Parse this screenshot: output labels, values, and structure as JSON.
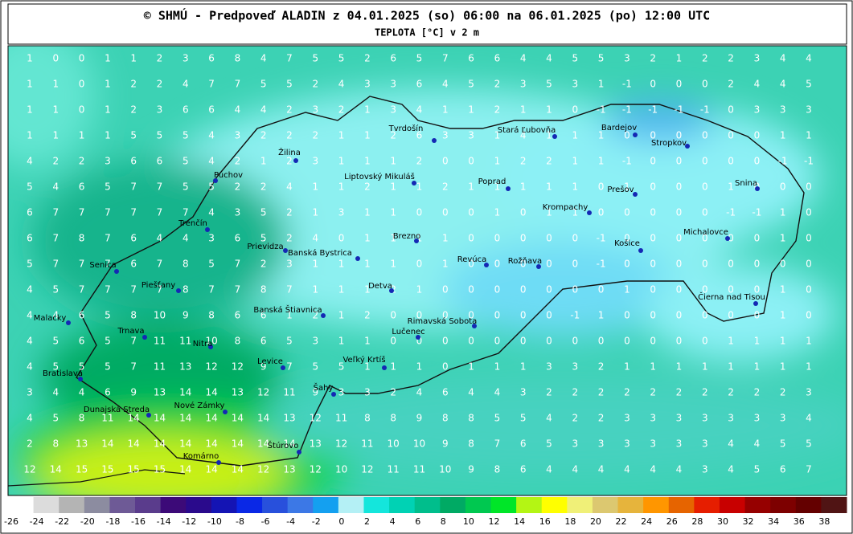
{
  "header": {
    "title": "© SHMÚ - Predpoveď ALADIN z 04.01.2025 (so) 06:00 na 06.01.2025 (po) 12:00 UTC",
    "subtitle": "TEPLOTA [°C] v 2 m"
  },
  "grid": {
    "rows": [
      [
        1,
        0,
        0,
        1,
        1,
        2,
        3,
        6,
        8,
        4,
        7,
        5,
        5,
        2,
        6,
        5,
        7,
        6,
        6,
        4,
        4,
        5,
        5,
        3,
        2,
        1,
        2,
        2,
        3,
        4,
        4
      ],
      [
        1,
        1,
        0,
        1,
        2,
        2,
        4,
        7,
        7,
        5,
        5,
        2,
        4,
        3,
        3,
        6,
        4,
        5,
        2,
        3,
        5,
        3,
        1,
        -1,
        0,
        0,
        0,
        2,
        4,
        4,
        5
      ],
      [
        1,
        1,
        0,
        1,
        2,
        3,
        6,
        6,
        4,
        4,
        2,
        3,
        2,
        1,
        3,
        4,
        1,
        1,
        2,
        1,
        1,
        0,
        -1,
        -1,
        -1,
        -1,
        -1,
        0,
        3,
        3,
        3
      ],
      [
        1,
        1,
        1,
        1,
        5,
        5,
        5,
        4,
        3,
        2,
        2,
        2,
        1,
        1,
        2,
        6,
        3,
        3,
        1,
        4,
        1,
        1,
        1,
        0,
        0,
        0,
        0,
        0,
        0,
        1,
        1
      ],
      [
        4,
        2,
        2,
        3,
        6,
        6,
        5,
        4,
        2,
        1,
        2,
        3,
        1,
        1,
        1,
        2,
        0,
        0,
        1,
        2,
        2,
        1,
        1,
        -1,
        0,
        0,
        0,
        0,
        0,
        -1,
        -1
      ],
      [
        5,
        4,
        6,
        5,
        7,
        7,
        5,
        5,
        2,
        2,
        4,
        1,
        1,
        2,
        1,
        1,
        2,
        1,
        1,
        1,
        1,
        1,
        0,
        1,
        0,
        0,
        0,
        1,
        0,
        0,
        0
      ],
      [
        6,
        7,
        7,
        7,
        7,
        7,
        7,
        4,
        3,
        5,
        2,
        1,
        3,
        1,
        1,
        0,
        0,
        0,
        1,
        0,
        1,
        1,
        0,
        0,
        0,
        0,
        0,
        -1,
        -1,
        1,
        0
      ],
      [
        6,
        7,
        8,
        7,
        6,
        4,
        4,
        3,
        6,
        5,
        2,
        4,
        0,
        1,
        1,
        1,
        1,
        0,
        0,
        0,
        0,
        0,
        -1,
        0,
        0,
        0,
        0,
        0,
        0,
        1,
        0
      ],
      [
        5,
        7,
        7,
        7,
        6,
        7,
        8,
        5,
        7,
        2,
        3,
        1,
        1,
        1,
        1,
        0,
        1,
        0,
        0,
        0,
        0,
        0,
        -1,
        0,
        0,
        0,
        0,
        0,
        0,
        0,
        0
      ],
      [
        4,
        5,
        7,
        7,
        7,
        7,
        8,
        7,
        7,
        8,
        7,
        1,
        1,
        1,
        2,
        1,
        0,
        0,
        0,
        0,
        0,
        0,
        0,
        1,
        0,
        0,
        0,
        0,
        0,
        1,
        0
      ],
      [
        4,
        4,
        6,
        5,
        8,
        10,
        9,
        8,
        6,
        6,
        1,
        2,
        1,
        2,
        0,
        0,
        0,
        0,
        0,
        0,
        0,
        -1,
        1,
        0,
        0,
        0,
        0,
        0,
        0,
        1,
        0
      ],
      [
        4,
        5,
        6,
        5,
        7,
        11,
        11,
        10,
        8,
        6,
        5,
        3,
        1,
        1,
        0,
        0,
        0,
        0,
        0,
        0,
        0,
        0,
        0,
        0,
        0,
        0,
        0,
        1,
        1,
        1,
        1
      ],
      [
        4,
        5,
        5,
        5,
        7,
        11,
        13,
        12,
        12,
        9,
        7,
        5,
        5,
        1,
        1,
        1,
        0,
        1,
        1,
        1,
        3,
        3,
        2,
        1,
        1,
        1,
        1,
        1,
        1,
        1,
        1
      ],
      [
        3,
        4,
        4,
        6,
        9,
        13,
        14,
        14,
        13,
        12,
        11,
        9,
        3,
        3,
        2,
        4,
        6,
        4,
        4,
        3,
        2,
        2,
        2,
        2,
        2,
        2,
        2,
        2,
        2,
        2,
        3
      ],
      [
        4,
        5,
        8,
        11,
        14,
        14,
        14,
        14,
        14,
        14,
        13,
        12,
        11,
        8,
        8,
        9,
        8,
        8,
        5,
        5,
        4,
        2,
        2,
        3,
        3,
        3,
        3,
        3,
        3,
        3,
        4
      ],
      [
        2,
        8,
        13,
        14,
        14,
        14,
        14,
        14,
        14,
        14,
        14,
        13,
        12,
        11,
        10,
        10,
        9,
        8,
        7,
        6,
        5,
        3,
        3,
        3,
        3,
        3,
        3,
        4,
        4,
        5,
        5
      ],
      [
        12,
        14,
        15,
        15,
        15,
        15,
        14,
        14,
        14,
        12,
        13,
        12,
        10,
        12,
        11,
        11,
        10,
        9,
        8,
        6,
        4,
        4,
        4,
        4,
        4,
        4,
        3,
        4,
        5,
        6,
        7
      ]
    ]
  },
  "cities": [
    "Tvrdošín",
    "Stará Ľubovňa",
    "Bardejov",
    "Stropkov",
    "Žilina",
    "Púchov",
    "Liptovský Mikuláš",
    "Poprad",
    "Prešov",
    "Snina",
    "Krompachy",
    "Trenčín",
    "Michalovce",
    "Prievidza",
    "Brezno",
    "Banská Bystrica",
    "Košice",
    "Senica",
    "Revúca",
    "Rožňava",
    "Piešťany",
    "Detva",
    "Čierna nad Tisou",
    "Banská Štiavnica",
    "Malacky",
    "Rimavská Sobota",
    "Trnava",
    "Lučenec",
    "Nitra",
    "Levice",
    "Veľký Krtíš",
    "Bratislava",
    "Šahy",
    "Dunajská Streda",
    "Nové Zámky",
    "Štúrovo",
    "Komárno"
  ],
  "legend": {
    "labels": [
      -26,
      -24,
      -22,
      -20,
      -18,
      -16,
      -14,
      -12,
      -10,
      -8,
      -6,
      -4,
      -2,
      0,
      2,
      4,
      6,
      8,
      10,
      12,
      14,
      16,
      18,
      20,
      22,
      24,
      26,
      28,
      30,
      32,
      34,
      36,
      38
    ],
    "colors": [
      "#ffffff",
      "#dcdcdc",
      "#b4b4b4",
      "#8c8ca0",
      "#6e5a96",
      "#5a3c8c",
      "#3c0a78",
      "#2a0a8c",
      "#1414b4",
      "#0a28e6",
      "#2850dc",
      "#3c78e6",
      "#14a0f0",
      "#b4f0f5",
      "#14e6dc",
      "#00d2b4",
      "#00be8c",
      "#00aa64",
      "#00c850",
      "#00e628",
      "#b4f514",
      "#ffff00",
      "#f0f078",
      "#dcc870",
      "#e6b43c",
      "#ff9600",
      "#e66400",
      "#e61e00",
      "#c80000",
      "#960000",
      "#7d0000",
      "#640000",
      "#501414"
    ]
  }
}
